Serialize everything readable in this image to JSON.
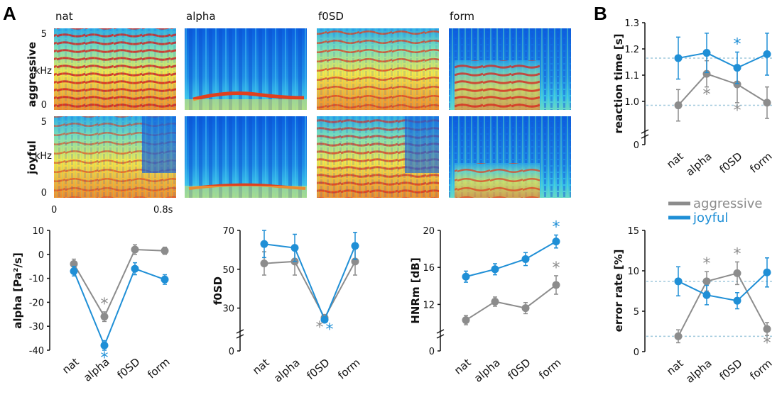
{
  "panels": {
    "a": "A",
    "b": "B"
  },
  "colors": {
    "aggressive": "#8c8c8c",
    "joyful": "#1f8fd6",
    "axis": "#111111",
    "ref_line": "#9fc8dc"
  },
  "spectrograms": {
    "columns": [
      "nat",
      "alpha",
      "f0SD",
      "form"
    ],
    "rows": [
      "aggressive",
      "joyful"
    ],
    "freq_ticks": [
      "5",
      "kHz",
      "0"
    ],
    "time_ticks": [
      "0",
      "0.8s"
    ]
  },
  "legend": [
    {
      "series": "aggressive",
      "label": "aggressive"
    },
    {
      "series": "joyful",
      "label": "joyful"
    }
  ],
  "chart_data": [
    {
      "type": "line",
      "id": "alpha",
      "ylabel": "alpha [Pa²/s]",
      "categories": [
        "nat",
        "alpha",
        "f0SD",
        "form"
      ],
      "ylim": [
        -40,
        10
      ],
      "yticks": [
        10,
        0,
        -10,
        -20,
        -30,
        -40
      ],
      "series": [
        {
          "name": "aggressive",
          "values": [
            -4,
            -26,
            2,
            1.5
          ],
          "err": [
            2,
            2,
            2,
            1.5
          ]
        },
        {
          "name": "joyful",
          "values": [
            -7,
            -38,
            -6,
            -10.5
          ],
          "err": [
            2,
            2,
            2.5,
            2
          ]
        }
      ],
      "stars": [
        {
          "series": "aggressive",
          "index": 1,
          "pos": "above"
        },
        {
          "series": "joyful",
          "index": 1,
          "pos": "below"
        }
      ]
    },
    {
      "type": "line",
      "id": "f0sd",
      "ylabel": "f0SD",
      "categories": [
        "nat",
        "alpha",
        "f0SD",
        "form"
      ],
      "ylim": [
        20,
        70
      ],
      "yticks": [
        70,
        50,
        30,
        0
      ],
      "axis_break": true,
      "series": [
        {
          "name": "aggressive",
          "values": [
            53,
            54,
            25,
            54
          ],
          "err": [
            6,
            7,
            1,
            7
          ]
        },
        {
          "name": "joyful",
          "values": [
            63,
            61,
            24,
            62
          ],
          "err": [
            7,
            7,
            1,
            7
          ]
        }
      ],
      "stars": [
        {
          "series": "aggressive",
          "index": 2,
          "pos": "below"
        },
        {
          "series": "joyful",
          "index": 2,
          "pos": "below"
        }
      ]
    },
    {
      "type": "line",
      "id": "hnr",
      "ylabel": "HNRm [dB]",
      "categories": [
        "nat",
        "alpha",
        "f0SD",
        "form"
      ],
      "ylim": [
        9.5,
        20
      ],
      "yticks": [
        20,
        16,
        12,
        0
      ],
      "axis_break": true,
      "series": [
        {
          "name": "aggressive",
          "values": [
            10.3,
            12.3,
            11.6,
            14.1
          ],
          "err": [
            0.5,
            0.5,
            0.6,
            1
          ]
        },
        {
          "name": "joyful",
          "values": [
            15,
            15.8,
            16.9,
            18.8
          ],
          "err": [
            0.6,
            0.6,
            0.7,
            0.7
          ]
        }
      ],
      "stars": [
        {
          "series": "aggressive",
          "index": 3,
          "pos": "above"
        },
        {
          "series": "joyful",
          "index": 3,
          "pos": "above"
        }
      ]
    },
    {
      "type": "line",
      "id": "rt",
      "ylabel": "reaction time [s]",
      "categories": [
        "nat",
        "alpha",
        "f0SD",
        "form"
      ],
      "ylim": [
        0.9,
        1.3
      ],
      "yticks": [
        1.3,
        1.2,
        1.1,
        1.0,
        0
      ],
      "axis_break": true,
      "ref_lines": [
        1.165,
        0.985
      ],
      "series": [
        {
          "name": "aggressive",
          "values": [
            0.985,
            1.105,
            1.065,
            0.995
          ],
          "err": [
            0.06,
            0.05,
            0.07,
            0.06
          ]
        },
        {
          "name": "joyful",
          "values": [
            1.165,
            1.185,
            1.128,
            1.18
          ],
          "err": [
            0.08,
            0.075,
            0.06,
            0.08
          ]
        }
      ],
      "stars": [
        {
          "series": "joyful",
          "index": 2,
          "pos": "above"
        },
        {
          "series": "aggressive",
          "index": 1,
          "pos": "below"
        },
        {
          "series": "aggressive",
          "index": 2,
          "pos": "below"
        }
      ]
    },
    {
      "type": "line",
      "id": "err",
      "ylabel": "error rate [%]",
      "categories": [
        "nat",
        "alpha",
        "f0SD",
        "form"
      ],
      "ylim": [
        0,
        15
      ],
      "yticks": [
        15,
        10,
        5,
        0
      ],
      "ref_lines": [
        8.7,
        1.9
      ],
      "series": [
        {
          "name": "aggressive",
          "values": [
            1.9,
            8.7,
            9.7,
            2.8
          ],
          "err": [
            0.8,
            1.2,
            1.4,
            0.8
          ]
        },
        {
          "name": "joyful",
          "values": [
            8.7,
            7.0,
            6.3,
            9.8
          ],
          "err": [
            1.8,
            1.2,
            1.0,
            1.8
          ]
        }
      ],
      "stars": [
        {
          "series": "aggressive",
          "index": 1,
          "pos": "above"
        },
        {
          "series": "aggressive",
          "index": 2,
          "pos": "above"
        },
        {
          "series": "aggressive",
          "index": 3,
          "pos": "below"
        }
      ]
    }
  ]
}
